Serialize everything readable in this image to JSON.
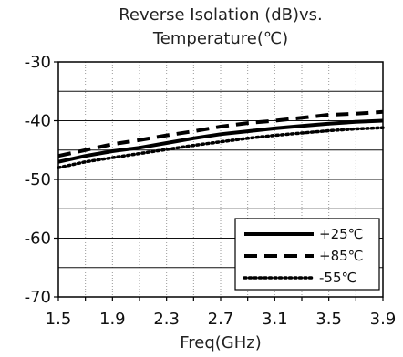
{
  "chart_data": {
    "type": "line",
    "title_line1": "Reverse Isolation (dB)vs.",
    "title_line2": "Temperature(℃)",
    "xlabel": "Freq(GHz)",
    "ylabel": "",
    "xlim": [
      1.5,
      3.9
    ],
    "ylim": [
      -70,
      -30
    ],
    "xticks": [
      "1.5",
      "1.9",
      "2.3",
      "2.7",
      "3.1",
      "3.5",
      "3.9"
    ],
    "yticks": [
      "-30",
      "-40",
      "-50",
      "-60",
      "-70"
    ],
    "grid": true,
    "legend_position": "bottom-right",
    "x": [
      1.5,
      1.7,
      1.9,
      2.1,
      2.3,
      2.5,
      2.7,
      2.9,
      3.1,
      3.3,
      3.5,
      3.7,
      3.9
    ],
    "series": [
      {
        "name": "+25℃",
        "style": "solid",
        "color": "#000000",
        "values": [
          -47.0,
          -46.0,
          -45.2,
          -44.6,
          -43.8,
          -43.0,
          -42.3,
          -41.8,
          -41.3,
          -40.9,
          -40.5,
          -40.2,
          -40.0
        ]
      },
      {
        "name": "+85℃",
        "style": "dashed",
        "color": "#000000",
        "values": [
          -46.0,
          -45.0,
          -44.0,
          -43.3,
          -42.5,
          -41.8,
          -41.0,
          -40.4,
          -40.0,
          -39.5,
          -39.0,
          -38.8,
          -38.5
        ]
      },
      {
        "name": "-55℃",
        "style": "dotted",
        "color": "#000000",
        "values": [
          -48.0,
          -47.0,
          -46.3,
          -45.6,
          -44.9,
          -44.2,
          -43.6,
          -43.0,
          -42.5,
          -42.1,
          -41.7,
          -41.4,
          -41.2
        ]
      }
    ]
  }
}
